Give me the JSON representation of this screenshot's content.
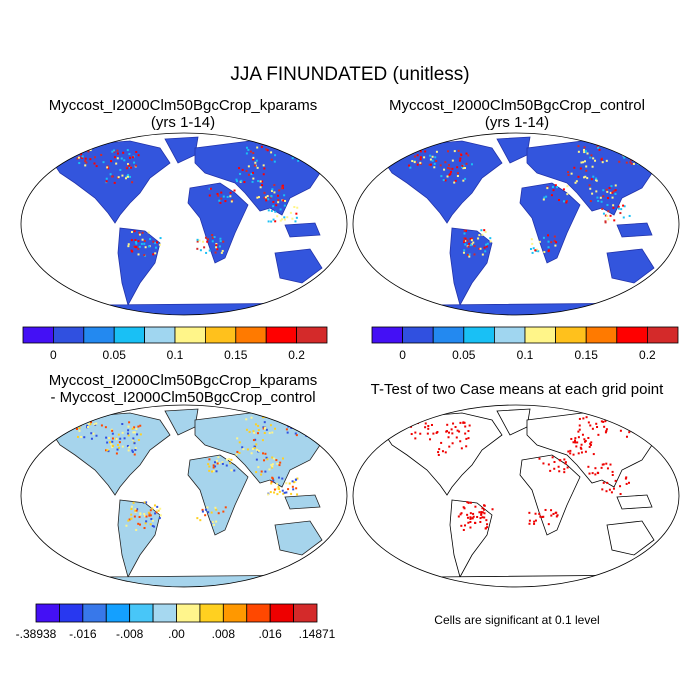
{
  "title": "JJA FINUNDATED (unitless)",
  "panels": [
    {
      "title": "Myccost_I2000Clm50BgcCrop_kparams",
      "subtitle": "(yrs 1-14)"
    },
    {
      "title": "Myccost_I2000Clm50BgcCrop_control",
      "subtitle": "(yrs 1-14)"
    },
    {
      "title": "Myccost_I2000Clm50BgcCrop_kparams",
      "subtitle": "- Myccost_I2000Clm50BgcCrop_control"
    },
    {
      "title": "T-Test of two Case means at each grid point",
      "subtitle": ""
    }
  ],
  "colorbar_abs": {
    "colors": [
      "#4410f5",
      "#3050e0",
      "#2389f0",
      "#19c0f5",
      "#a0d6f0",
      "#fff589",
      "#ffc11c",
      "#ff7a00",
      "#ff0000",
      "#d42a2a"
    ],
    "labels": [
      "0",
      "0.05",
      "0.1",
      "0.15",
      "0.2"
    ]
  },
  "colorbar_diff": {
    "colors": [
      "#4410f5",
      "#2838f0",
      "#3878ea",
      "#14a0ff",
      "#48c6f8",
      "#a6d8f0",
      "#fff58c",
      "#ffd020",
      "#ff9800",
      "#ff4800",
      "#ee0000",
      "#d42a2a"
    ],
    "labels": [
      "-.38938",
      "-.016",
      "-.008",
      ".00",
      ".008",
      ".016",
      ".14871"
    ]
  },
  "ttest_note": "Cells are significant at 0.1 level",
  "colors": {
    "land_abs": "#3355dd",
    "land_diff": "#a6d4ec",
    "signif": "#ee0000"
  }
}
